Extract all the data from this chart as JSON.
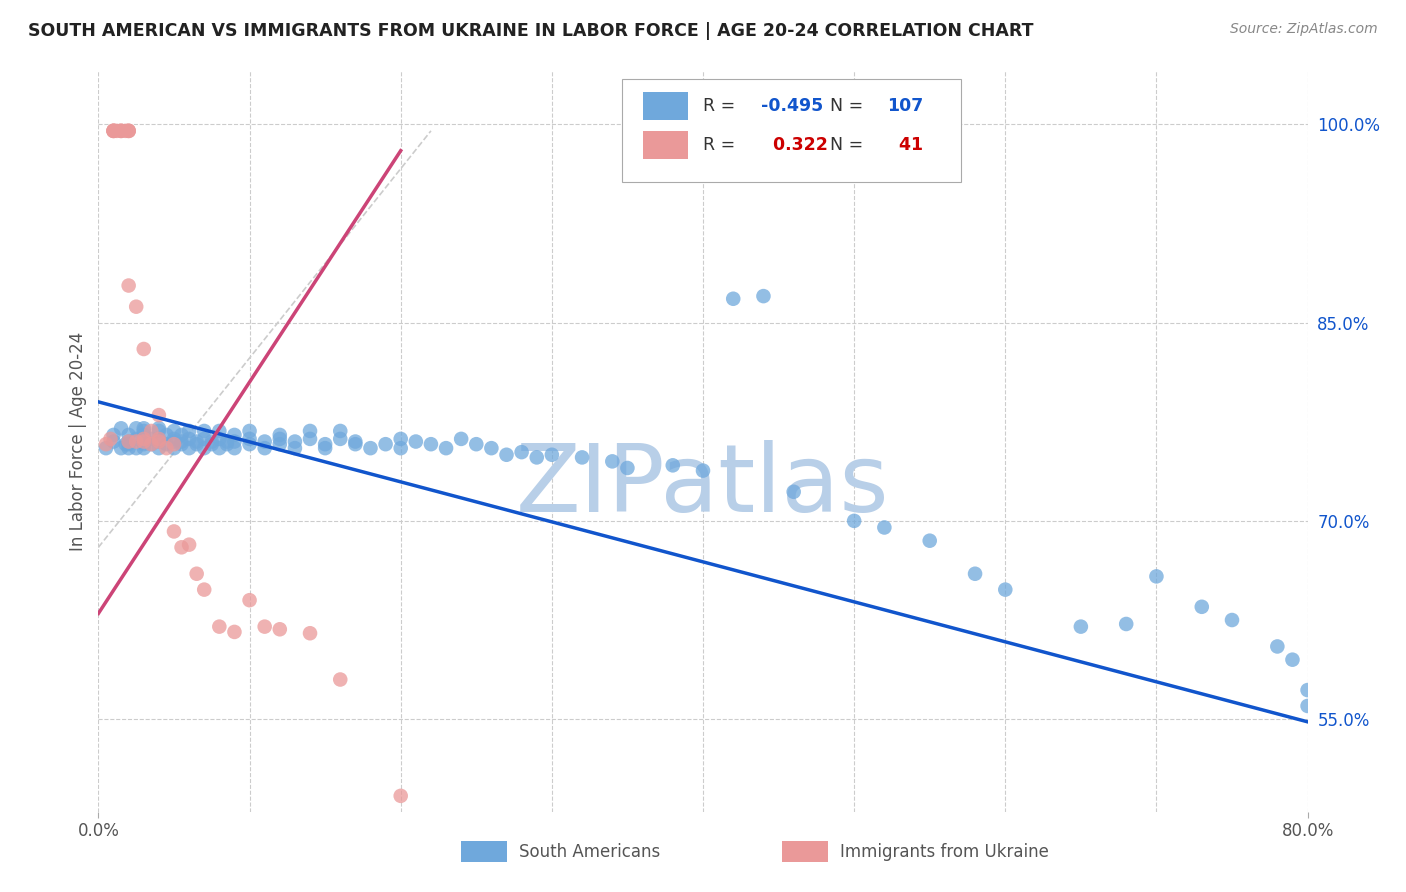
{
  "title": "SOUTH AMERICAN VS IMMIGRANTS FROM UKRAINE IN LABOR FORCE | AGE 20-24 CORRELATION CHART",
  "source": "Source: ZipAtlas.com",
  "ylabel": "In Labor Force | Age 20-24",
  "xlim": [
    0.0,
    0.8
  ],
  "ylim": [
    0.48,
    1.04
  ],
  "yticks_right": [
    1.0,
    0.85,
    0.7,
    0.55
  ],
  "yticklabels_right": [
    "100.0%",
    "85.0%",
    "70.0%",
    "55.0%"
  ],
  "blue_R": -0.495,
  "blue_N": 107,
  "pink_R": 0.322,
  "pink_N": 41,
  "blue_color": "#6fa8dc",
  "pink_color": "#ea9999",
  "blue_line_color": "#1155cc",
  "pink_line_color": "#cc4477",
  "gray_line_color": "#cccccc",
  "watermark": "ZIPatlas",
  "watermark_color": "#b8cfe8",
  "legend_label_blue": "South Americans",
  "legend_label_pink": "Immigrants from Ukraine",
  "blue_scatter_x": [
    0.005,
    0.01,
    0.01,
    0.015,
    0.015,
    0.018,
    0.02,
    0.02,
    0.02,
    0.02,
    0.025,
    0.025,
    0.025,
    0.03,
    0.03,
    0.03,
    0.03,
    0.03,
    0.03,
    0.035,
    0.035,
    0.04,
    0.04,
    0.04,
    0.04,
    0.04,
    0.045,
    0.045,
    0.05,
    0.05,
    0.05,
    0.05,
    0.055,
    0.055,
    0.055,
    0.06,
    0.06,
    0.06,
    0.065,
    0.065,
    0.07,
    0.07,
    0.07,
    0.075,
    0.075,
    0.08,
    0.08,
    0.08,
    0.085,
    0.085,
    0.09,
    0.09,
    0.09,
    0.1,
    0.1,
    0.1,
    0.11,
    0.11,
    0.12,
    0.12,
    0.12,
    0.13,
    0.13,
    0.14,
    0.14,
    0.15,
    0.15,
    0.16,
    0.16,
    0.17,
    0.17,
    0.18,
    0.19,
    0.2,
    0.2,
    0.21,
    0.22,
    0.23,
    0.24,
    0.25,
    0.26,
    0.27,
    0.28,
    0.29,
    0.3,
    0.32,
    0.34,
    0.35,
    0.38,
    0.4,
    0.42,
    0.44,
    0.46,
    0.5,
    0.52,
    0.55,
    0.58,
    0.6,
    0.65,
    0.68,
    0.7,
    0.73,
    0.75,
    0.78,
    0.79,
    0.8,
    0.8
  ],
  "blue_scatter_y": [
    0.755,
    0.76,
    0.765,
    0.755,
    0.77,
    0.758,
    0.755,
    0.76,
    0.765,
    0.758,
    0.762,
    0.77,
    0.755,
    0.768,
    0.758,
    0.762,
    0.755,
    0.765,
    0.77,
    0.762,
    0.758,
    0.768,
    0.76,
    0.755,
    0.762,
    0.77,
    0.758,
    0.765,
    0.76,
    0.755,
    0.768,
    0.762,
    0.758,
    0.765,
    0.76,
    0.755,
    0.762,
    0.768,
    0.758,
    0.76,
    0.755,
    0.762,
    0.768,
    0.76,
    0.758,
    0.755,
    0.762,
    0.768,
    0.76,
    0.758,
    0.755,
    0.765,
    0.76,
    0.758,
    0.768,
    0.762,
    0.76,
    0.755,
    0.762,
    0.758,
    0.765,
    0.76,
    0.755,
    0.768,
    0.762,
    0.758,
    0.755,
    0.762,
    0.768,
    0.758,
    0.76,
    0.755,
    0.758,
    0.762,
    0.755,
    0.76,
    0.758,
    0.755,
    0.762,
    0.758,
    0.755,
    0.75,
    0.752,
    0.748,
    0.75,
    0.748,
    0.745,
    0.74,
    0.742,
    0.738,
    0.868,
    0.87,
    0.722,
    0.7,
    0.695,
    0.685,
    0.66,
    0.648,
    0.62,
    0.622,
    0.658,
    0.635,
    0.625,
    0.605,
    0.595,
    0.572,
    0.56
  ],
  "pink_scatter_x": [
    0.005,
    0.008,
    0.01,
    0.01,
    0.01,
    0.01,
    0.012,
    0.015,
    0.015,
    0.015,
    0.018,
    0.02,
    0.02,
    0.02,
    0.02,
    0.02,
    0.025,
    0.025,
    0.03,
    0.03,
    0.03,
    0.035,
    0.035,
    0.04,
    0.04,
    0.04,
    0.045,
    0.05,
    0.05,
    0.055,
    0.06,
    0.065,
    0.07,
    0.08,
    0.09,
    0.1,
    0.11,
    0.12,
    0.14,
    0.16,
    0.2
  ],
  "pink_scatter_y": [
    0.758,
    0.762,
    0.995,
    0.995,
    0.995,
    0.995,
    0.995,
    0.995,
    0.995,
    0.995,
    0.995,
    0.995,
    0.995,
    0.995,
    0.878,
    0.76,
    0.862,
    0.76,
    0.83,
    0.76,
    0.762,
    0.768,
    0.758,
    0.78,
    0.762,
    0.76,
    0.755,
    0.692,
    0.758,
    0.68,
    0.682,
    0.66,
    0.648,
    0.62,
    0.616,
    0.64,
    0.62,
    0.618,
    0.615,
    0.58,
    0.492
  ],
  "blue_line_x": [
    0.0,
    0.8
  ],
  "blue_line_y": [
    0.79,
    0.548
  ],
  "pink_line_x": [
    0.0,
    0.2
  ],
  "pink_line_y": [
    0.63,
    0.98
  ],
  "gray_line_x": [
    0.0,
    0.22
  ],
  "gray_line_y": [
    0.68,
    0.995
  ]
}
